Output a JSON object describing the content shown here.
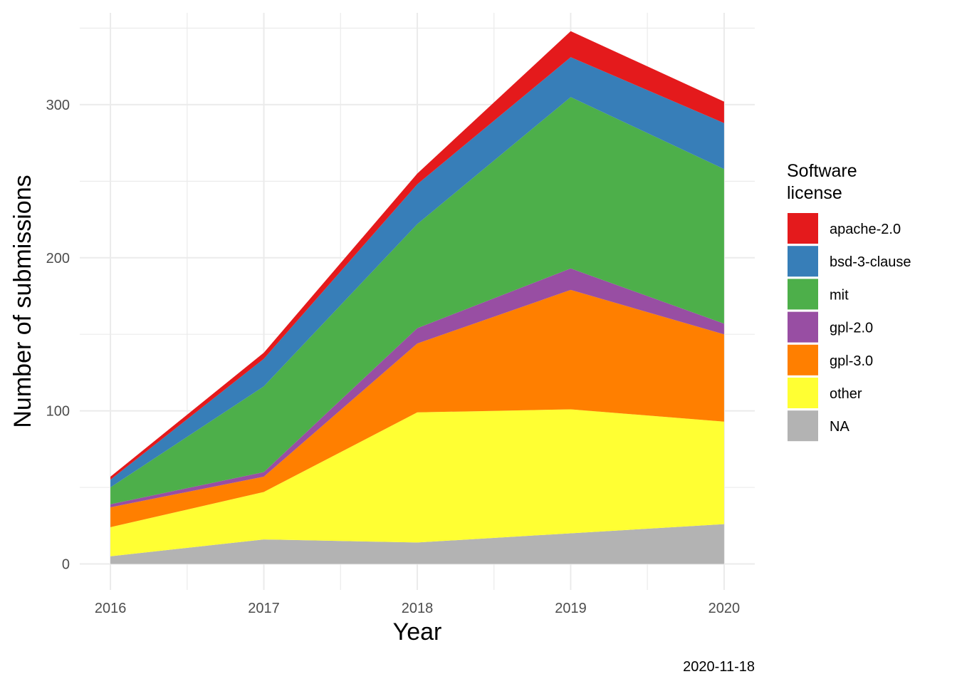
{
  "chart_data": {
    "type": "area",
    "stacked": true,
    "title": "",
    "xlabel": "Year",
    "ylabel": "Number of submissions",
    "caption": "2020-11-18",
    "x": [
      2016,
      2017,
      2018,
      2019,
      2020
    ],
    "x_ticks": [
      "2016",
      "2017",
      "2018",
      "2019",
      "2020"
    ],
    "y_ticks": [
      "0",
      "100",
      "200",
      "300"
    ],
    "xlim": [
      2015.8,
      2020.2
    ],
    "ylim": [
      -17,
      360
    ],
    "grid": true,
    "legend": {
      "title_lines": [
        "Software",
        "license"
      ],
      "position": "right"
    },
    "series": [
      {
        "name": "NA",
        "color": "#B3B3B3",
        "values": [
          5,
          16,
          14,
          20,
          26
        ]
      },
      {
        "name": "other",
        "color": "#FFFF33",
        "values": [
          19,
          31,
          85,
          81,
          67
        ]
      },
      {
        "name": "gpl-3.0",
        "color": "#FF7F00",
        "values": [
          13,
          10,
          45,
          78,
          57
        ]
      },
      {
        "name": "gpl-2.0",
        "color": "#984EA3",
        "values": [
          2,
          3,
          10,
          14,
          7
        ]
      },
      {
        "name": "mit",
        "color": "#4DAF4A",
        "values": [
          11,
          56,
          68,
          112,
          101
        ]
      },
      {
        "name": "bsd-3-clause",
        "color": "#377EB8",
        "values": [
          5,
          18,
          26,
          26,
          30
        ]
      },
      {
        "name": "apache-2.0",
        "color": "#E41A1C",
        "values": [
          2,
          4,
          7,
          17,
          14
        ]
      }
    ],
    "legend_order": [
      "apache-2.0",
      "bsd-3-clause",
      "mit",
      "gpl-2.0",
      "gpl-3.0",
      "other",
      "NA"
    ]
  }
}
